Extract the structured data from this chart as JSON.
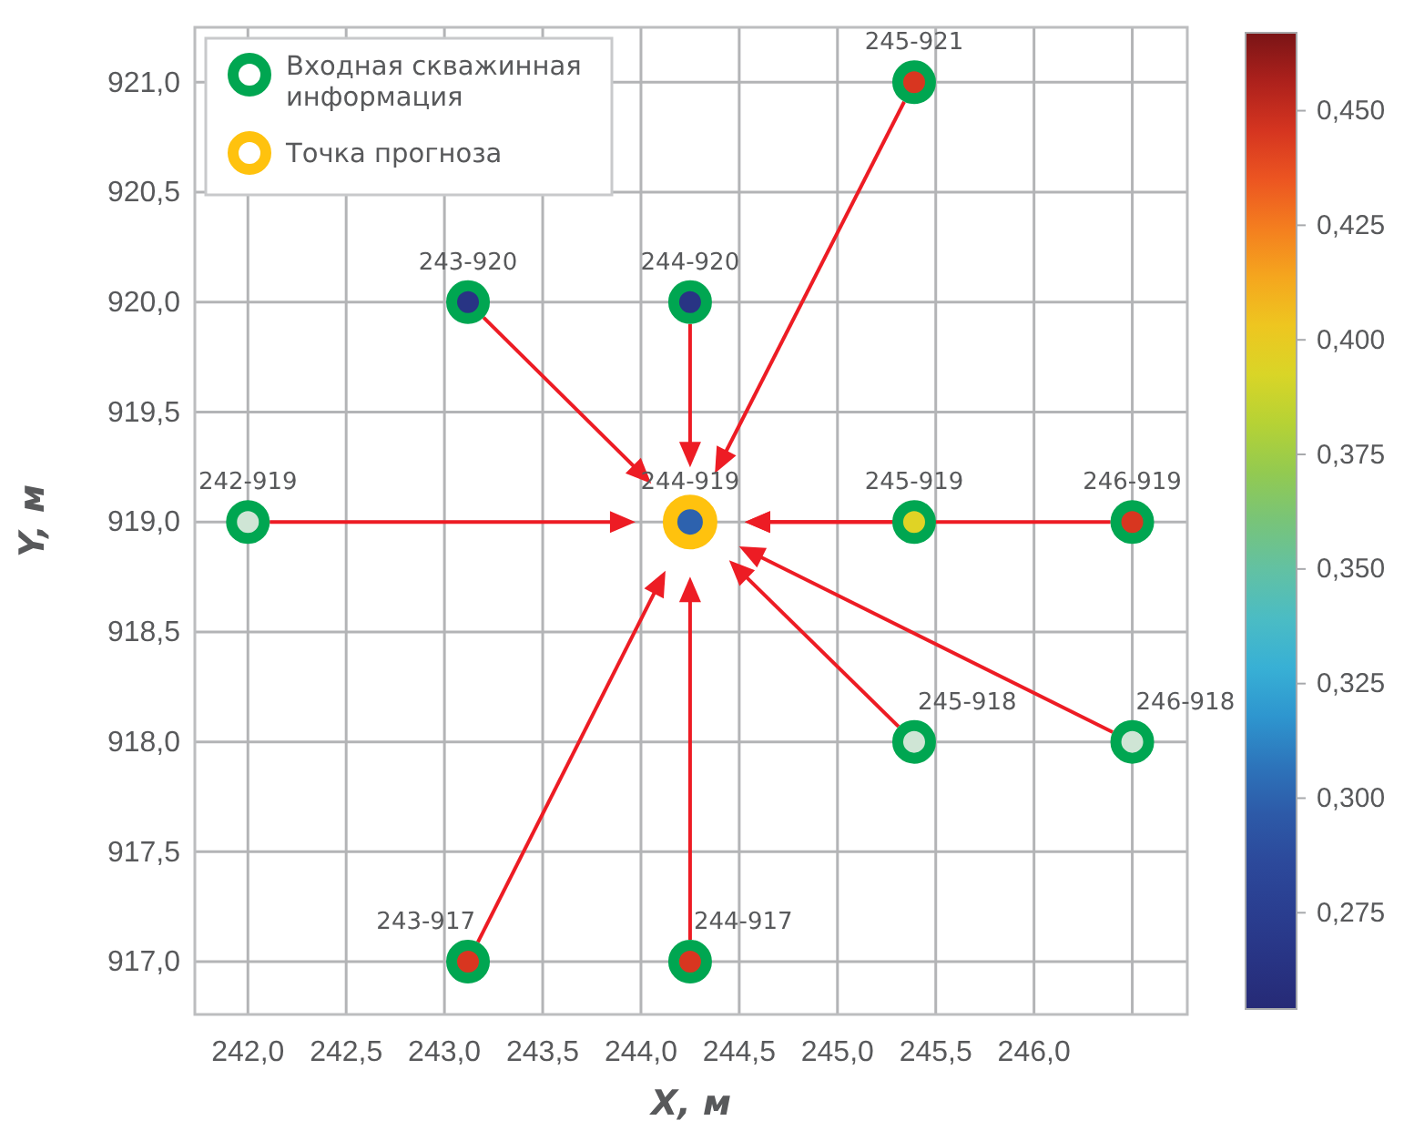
{
  "chart_data": {
    "type": "scatter",
    "xlabel": "X, м",
    "ylabel": "Y, м",
    "xlim": [
      241.73,
      246.78
    ],
    "xticks": [
      {
        "value": 242,
        "label": "242,0"
      },
      {
        "value": 242.5,
        "label": "242,5"
      },
      {
        "value": 243,
        "label": "243,0"
      },
      {
        "value": 243.5,
        "label": "243,5"
      },
      {
        "value": 244,
        "label": "244,0"
      },
      {
        "value": 244.5,
        "label": "244,5"
      },
      {
        "value": 245,
        "label": "245,0"
      },
      {
        "value": 245.5,
        "label": "245,5"
      },
      {
        "value": 246,
        "label": "246,0"
      },
      {
        "value": 246.5,
        "label": null
      }
    ],
    "ylim": [
      916.76,
      921.25
    ],
    "yticks": [
      {
        "value": 917,
        "label": "917,0"
      },
      {
        "value": 917.5,
        "label": "917,5"
      },
      {
        "value": 918,
        "label": "918,0"
      },
      {
        "value": 918.5,
        "label": "918,5"
      },
      {
        "value": 919,
        "label": "919,0"
      },
      {
        "value": 919.5,
        "label": "919,5"
      },
      {
        "value": 920,
        "label": "920,0"
      },
      {
        "value": 920.5,
        "label": "920,5"
      },
      {
        "value": 921,
        "label": "921,0"
      }
    ],
    "grid": true,
    "legend": "top left",
    "marker": "circle",
    "clim": [
      0.254,
      0.467
    ],
    "cticks": [
      {
        "value": 0.275,
        "label": "0,275"
      },
      {
        "value": 0.3,
        "label": "0,300"
      },
      {
        "value": 0.325,
        "label": "0,325"
      },
      {
        "value": 0.35,
        "label": "0,350"
      },
      {
        "value": 0.375,
        "label": "0,375"
      },
      {
        "value": 0.4,
        "label": "0,400"
      },
      {
        "value": 0.425,
        "label": "0,425"
      },
      {
        "value": 0.45,
        "label": "0,450"
      }
    ],
    "series": [
      {
        "name": "Входная скважинная информация",
        "color": "#00a651",
        "x": [
          243.12,
          244.25,
          245.39,
          242.0,
          245.39,
          246.5,
          245.39,
          246.5,
          243.12,
          244.25
        ],
        "values": [
          920,
          920,
          921,
          919,
          919,
          919,
          918,
          918,
          917,
          917
        ],
        "cvalues": [
          0.265,
          0.265,
          0.445,
          null,
          0.395,
          0.445,
          null,
          null,
          0.445,
          0.445
        ]
      },
      {
        "name": "Точка прогноза",
        "color": "#ffc20e",
        "x": [
          244.25
        ],
        "values": [
          919
        ],
        "cvalues": [
          0.3
        ]
      }
    ],
    "annotations": [
      {
        "text": "243-920",
        "x": 243.12,
        "y": 920
      },
      {
        "text": "244-920",
        "x": 244.25,
        "y": 920
      },
      {
        "text": "245-921",
        "x": 245.39,
        "y": 921
      },
      {
        "text": "242-919",
        "x": 242.0,
        "y": 919
      },
      {
        "text": "244-919",
        "x": 244.25,
        "y": 919
      },
      {
        "text": "245-919",
        "x": 245.39,
        "y": 919
      },
      {
        "text": "246-919",
        "x": 246.5,
        "y": 919
      },
      {
        "text": "245-918",
        "x": 245.39,
        "y": 918
      },
      {
        "text": "246-918",
        "x": 246.5,
        "y": 918
      },
      {
        "text": "243-917",
        "x": 243.12,
        "y": 917
      },
      {
        "text": "244-917",
        "x": 244.25,
        "y": 917
      }
    ]
  }
}
